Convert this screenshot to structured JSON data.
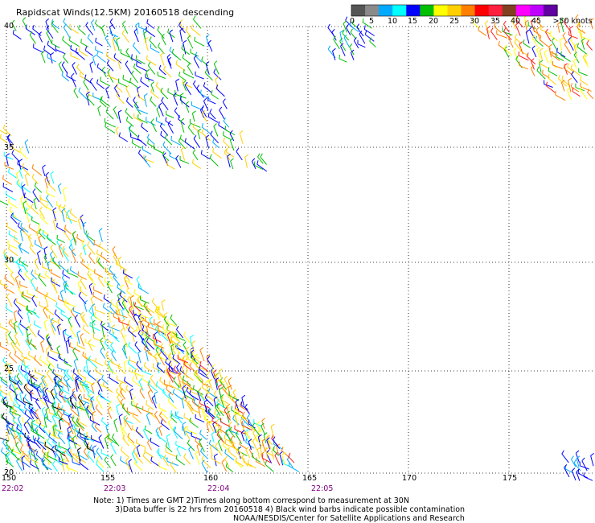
{
  "title": "Rapidscat Winds(12.5KM) 20160518 descending",
  "colorbar": {
    "swatches": [
      "#555555",
      "#8a8a8a",
      "#00aaff",
      "#00ffff",
      "#0000ff",
      "#00c000",
      "#ffff00",
      "#ffd000",
      "#ff8000",
      "#ff0000",
      "#ff2040",
      "#804020",
      "#ff00ff",
      "#c000ff",
      "#6000a0"
    ],
    "labels": [
      "0",
      "5",
      "10",
      "15",
      "20",
      "25",
      "30",
      "35",
      "40",
      "45",
      ">50 knots"
    ]
  },
  "latitudes": [
    "40",
    "35",
    "30",
    "25",
    "20"
  ],
  "longitudes": [
    "150",
    "155",
    "160",
    "165",
    "170",
    "175"
  ],
  "times": [
    "22:02",
    "22:03",
    "22:04",
    "22:05"
  ],
  "notes": {
    "line1": "Note: 1) Times are GMT 2)Times along bottom correspond to measurement at 30N",
    "line2": "3)Data buffer is 22 hrs from 20160518 4) Black wind barbs indicate possible contamination",
    "line3": "NOAA/NESDIS/Center for Satellite Applications and Research"
  }
}
